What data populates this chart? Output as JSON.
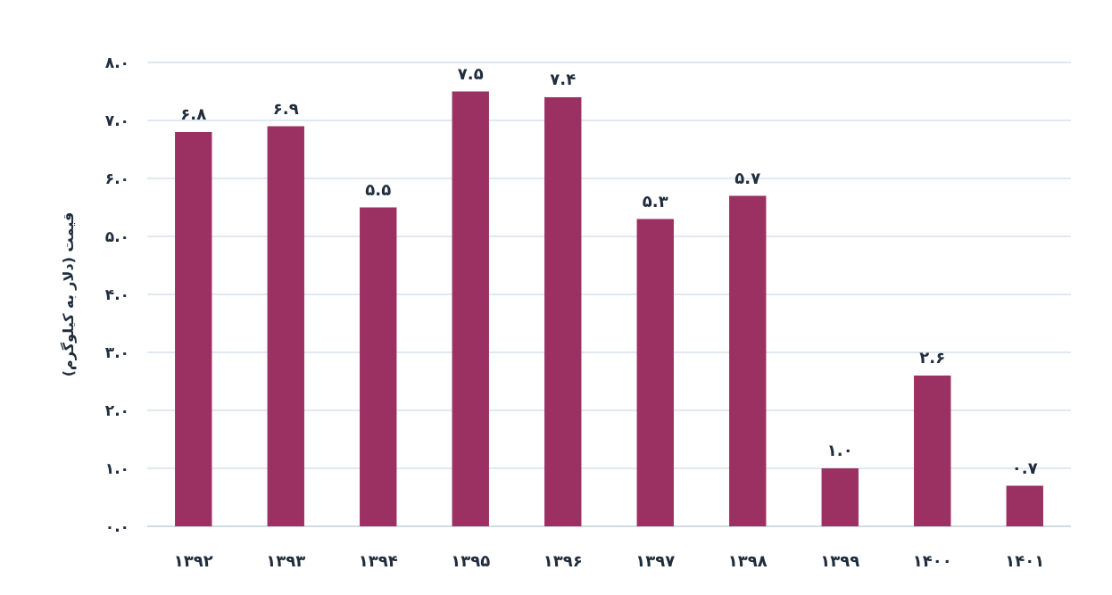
{
  "chart_data": {
    "type": "bar",
    "ylabel": "قیمت (دلار به کیلوگرم)",
    "categories": [
      "۱۳۹۲",
      "۱۳۹۳",
      "۱۳۹۴",
      "۱۳۹۵",
      "۱۳۹۶",
      "۱۳۹۷",
      "۱۳۹۸",
      "۱۳۹۹",
      "۱۴۰۰",
      "۱۴۰۱"
    ],
    "values": [
      6.8,
      6.9,
      5.5,
      7.5,
      7.4,
      5.3,
      5.7,
      1.0,
      2.6,
      0.7
    ],
    "value_labels": [
      "۶.۸",
      "۶.۹",
      "۵.۵",
      "۷.۵",
      "۷.۴",
      "۵.۳",
      "۵.۷",
      "۱.۰",
      "۲.۶",
      "۰.۷"
    ],
    "color": "#9b3163",
    "ylim": [
      0,
      8
    ],
    "yticks": [
      {
        "value": 0,
        "label": "۰.۰"
      },
      {
        "value": 1,
        "label": "۱.۰"
      },
      {
        "value": 2,
        "label": "۲.۰"
      },
      {
        "value": 3,
        "label": "۳.۰"
      },
      {
        "value": 4,
        "label": "۴.۰"
      },
      {
        "value": 5,
        "label": "۵.۰"
      },
      {
        "value": 6,
        "label": "۶.۰"
      },
      {
        "value": 7,
        "label": "۷.۰"
      },
      {
        "value": 8,
        "label": "۸.۰"
      }
    ],
    "grid": "y"
  }
}
